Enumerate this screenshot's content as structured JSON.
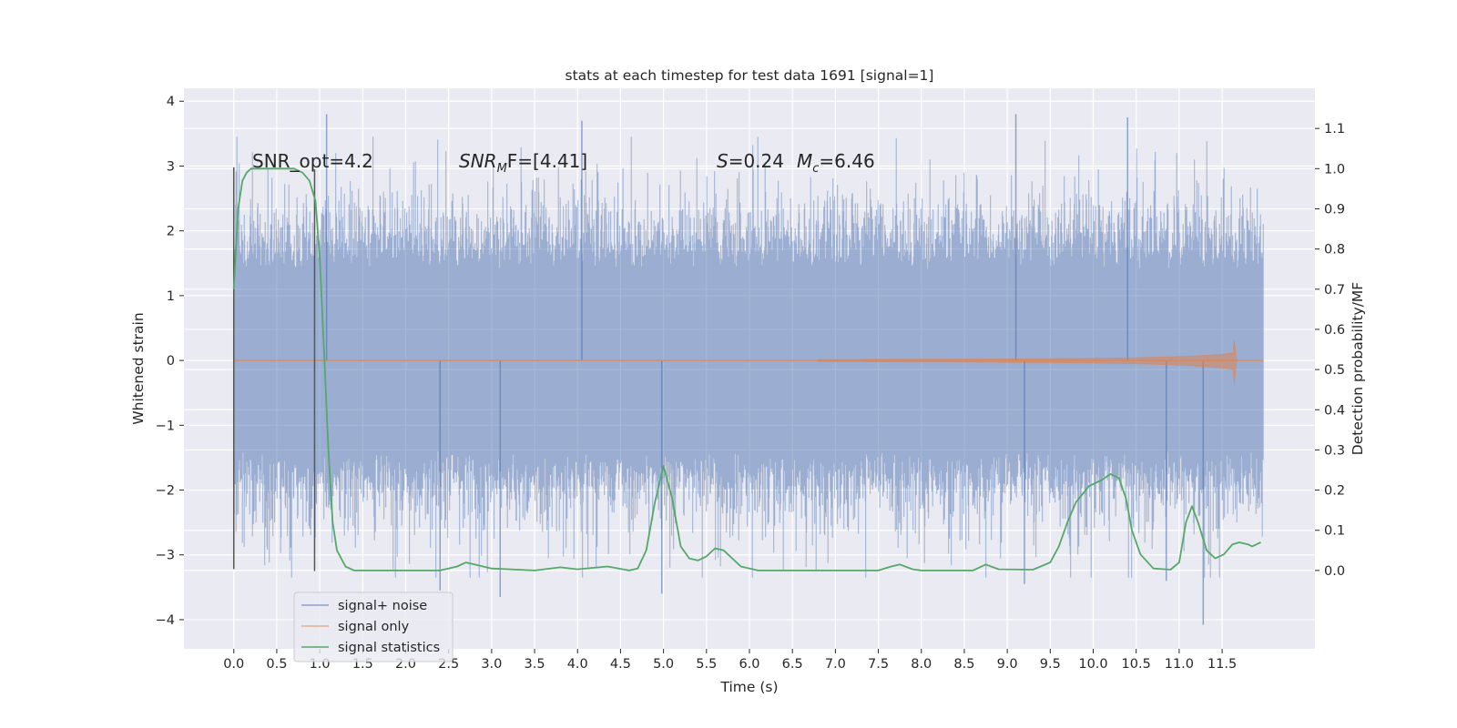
{
  "colors": {
    "background": "#ffffff",
    "plot_bg": "#eaeaf2",
    "grid": "#ffffff",
    "signal_noise": "#4c72b0",
    "signal_only": "#dd8452",
    "signal_stats": "#55a868",
    "marker_line": "#555555",
    "text": "#262626"
  },
  "chart_data": {
    "type": "line",
    "title": "stats at each timestep for test data 1691 [signal=1]",
    "xlabel": "Time (s)",
    "ylabel_left": "Whitened strain",
    "ylabel_right": "Detection probability/MF",
    "xlim": [
      -0.58,
      12.58
    ],
    "ylim_left": [
      -4.45,
      4.2
    ],
    "ylim_right": [
      -0.195,
      1.2
    ],
    "x_ticks": [
      0.0,
      0.5,
      1.0,
      1.5,
      2.0,
      2.5,
      3.0,
      3.5,
      4.0,
      4.5,
      5.0,
      5.5,
      6.0,
      6.5,
      7.0,
      7.5,
      8.0,
      8.5,
      9.0,
      9.5,
      10.0,
      10.5,
      11.0,
      11.5
    ],
    "x_tick_labels": [
      "0.0",
      "0.5",
      "1.0",
      "1.5",
      "2.0",
      "2.5",
      "3.0",
      "3.5",
      "4.0",
      "4.5",
      "5.0",
      "5.5",
      "6.0",
      "6.5",
      "7.0",
      "7.5",
      "8.0",
      "8.5",
      "9.0",
      "9.5",
      "10.0",
      "10.5",
      "11.0",
      "11.5"
    ],
    "y_left_ticks": [
      -4,
      -3,
      -2,
      -1,
      0,
      1,
      2,
      3,
      4
    ],
    "y_left_tick_labels": [
      "−4",
      "−3",
      "−2",
      "−1",
      "0",
      "1",
      "2",
      "3",
      "4"
    ],
    "y_right_ticks": [
      0.0,
      0.1,
      0.2,
      0.3,
      0.4,
      0.5,
      0.6,
      0.7,
      0.8,
      0.9,
      1.0,
      1.1
    ],
    "y_right_tick_labels": [
      "0.0",
      "0.1",
      "0.2",
      "0.3",
      "0.4",
      "0.5",
      "0.6",
      "0.7",
      "0.8",
      "0.9",
      "1.0",
      "1.1"
    ],
    "grid": true,
    "legend": {
      "position": "lower-left",
      "entries": [
        "signal+ noise",
        "signal only",
        "signal statistics"
      ]
    },
    "annotations": {
      "snr_opt": "SNR_opt=4.2",
      "snr_mf_main": "SNR",
      "snr_mf_sub": "M",
      "snr_mf_rest": "F=[4.41]",
      "s_label": "S",
      "s_value": "=0.24",
      "mc_label": "M",
      "mc_sub": "c",
      "mc_value": "=6.46"
    },
    "marker_lines": [
      {
        "x": 0.0,
        "y_range": [
          -3.22,
          2.98
        ]
      },
      {
        "x": 0.94,
        "y_range": [
          -3.25,
          2.95
        ]
      }
    ],
    "signal_noise": {
      "x_range": [
        0.0,
        11.98
      ],
      "typical_abs": 1.4,
      "max": 3.8,
      "min": -4.08,
      "spikes": [
        {
          "x": 1.08,
          "y": 3.8
        },
        {
          "x": 4.05,
          "y": 3.7
        },
        {
          "x": 9.1,
          "y": 3.8
        },
        {
          "x": 10.4,
          "y": 3.75
        },
        {
          "x": 3.1,
          "y": -3.65
        },
        {
          "x": 2.4,
          "y": -3.55
        },
        {
          "x": 4.98,
          "y": -3.6
        },
        {
          "x": 11.28,
          "y": -4.08
        },
        {
          "x": 9.2,
          "y": -3.45
        },
        {
          "x": 10.85,
          "y": -3.4
        }
      ]
    },
    "signal_only": {
      "x_range": [
        0.0,
        11.98
      ],
      "chirp_start": 7.3,
      "peak_time": 11.63,
      "peak_amplitude": 0.42
    },
    "signal_statistics": {
      "points": [
        [
          0.0,
          0.7
        ],
        [
          0.05,
          0.9
        ],
        [
          0.1,
          0.97
        ],
        [
          0.15,
          0.99
        ],
        [
          0.2,
          1.0
        ],
        [
          0.7,
          1.0
        ],
        [
          0.8,
          0.99
        ],
        [
          0.88,
          0.97
        ],
        [
          0.95,
          0.92
        ],
        [
          1.0,
          0.78
        ],
        [
          1.05,
          0.55
        ],
        [
          1.1,
          0.3
        ],
        [
          1.15,
          0.12
        ],
        [
          1.2,
          0.05
        ],
        [
          1.3,
          0.01
        ],
        [
          1.4,
          0.0
        ],
        [
          2.4,
          0.0
        ],
        [
          2.6,
          0.01
        ],
        [
          2.7,
          0.02
        ],
        [
          2.8,
          0.015
        ],
        [
          3.0,
          0.005
        ],
        [
          3.5,
          0.0
        ],
        [
          3.8,
          0.008
        ],
        [
          4.0,
          0.003
        ],
        [
          4.35,
          0.01
        ],
        [
          4.6,
          0.0
        ],
        [
          4.7,
          0.005
        ],
        [
          4.8,
          0.05
        ],
        [
          4.9,
          0.17
        ],
        [
          5.0,
          0.26
        ],
        [
          5.1,
          0.18
        ],
        [
          5.2,
          0.06
        ],
        [
          5.3,
          0.03
        ],
        [
          5.4,
          0.025
        ],
        [
          5.5,
          0.035
        ],
        [
          5.6,
          0.055
        ],
        [
          5.7,
          0.05
        ],
        [
          5.8,
          0.03
        ],
        [
          5.9,
          0.01
        ],
        [
          6.1,
          0.0
        ],
        [
          7.0,
          0.0
        ],
        [
          7.5,
          0.0
        ],
        [
          7.65,
          0.01
        ],
        [
          7.75,
          0.015
        ],
        [
          7.9,
          0.003
        ],
        [
          8.0,
          0.0
        ],
        [
          8.6,
          0.0
        ],
        [
          8.75,
          0.015
        ],
        [
          8.9,
          0.003
        ],
        [
          9.3,
          0.002
        ],
        [
          9.5,
          0.02
        ],
        [
          9.6,
          0.06
        ],
        [
          9.7,
          0.12
        ],
        [
          9.8,
          0.17
        ],
        [
          9.95,
          0.21
        ],
        [
          10.1,
          0.225
        ],
        [
          10.2,
          0.24
        ],
        [
          10.3,
          0.23
        ],
        [
          10.38,
          0.18
        ],
        [
          10.45,
          0.1
        ],
        [
          10.55,
          0.04
        ],
        [
          10.7,
          0.005
        ],
        [
          10.9,
          0.002
        ],
        [
          11.0,
          0.02
        ],
        [
          11.08,
          0.12
        ],
        [
          11.15,
          0.16
        ],
        [
          11.22,
          0.12
        ],
        [
          11.32,
          0.05
        ],
        [
          11.42,
          0.03
        ],
        [
          11.52,
          0.04
        ],
        [
          11.62,
          0.065
        ],
        [
          11.7,
          0.07
        ],
        [
          11.8,
          0.065
        ],
        [
          11.85,
          0.06
        ],
        [
          11.9,
          0.065
        ],
        [
          11.95,
          0.07
        ]
      ]
    }
  }
}
